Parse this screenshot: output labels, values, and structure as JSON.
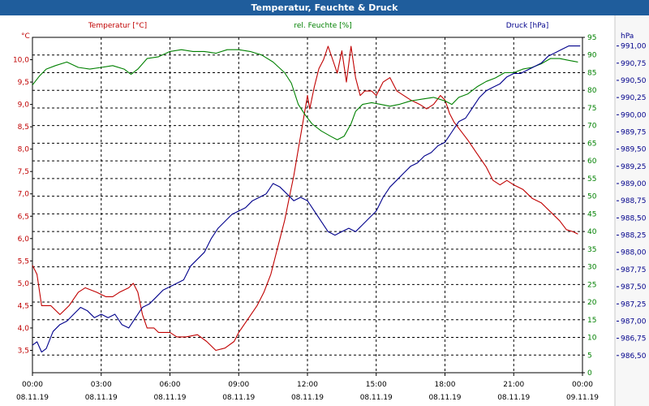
{
  "window": {
    "title": "Temperatur, Feuchte & Druck"
  },
  "chart_data": {
    "type": "line",
    "title": "Temperatur, Feuchte & Druck",
    "grid": true,
    "x_ticks": [
      {
        "time": "00:00",
        "date": "08.11.19"
      },
      {
        "time": "03:00",
        "date": "08.11.19"
      },
      {
        "time": "06:00",
        "date": "08.11.19"
      },
      {
        "time": "09:00",
        "date": "08.11.19"
      },
      {
        "time": "12:00",
        "date": "08.11.19"
      },
      {
        "time": "15:00",
        "date": "08.11.19"
      },
      {
        "time": "18:00",
        "date": "08.11.19"
      },
      {
        "time": "21:00",
        "date": "08.11.19"
      },
      {
        "time": "00:00",
        "date": "09.11.19"
      }
    ],
    "x_unit_hours": [
      0,
      24
    ],
    "axes": {
      "temperature": {
        "label": "Temperatur [°C]",
        "unit": "°C",
        "color": "#c00000",
        "min": 3.0,
        "max": 10.5,
        "ticks": [
          "3,5",
          "4,0",
          "4,5",
          "5,0",
          "5,5",
          "6,0",
          "6,5",
          "7,0",
          "7,5",
          "8,0",
          "8,5",
          "9,0",
          "9,5",
          "10,0"
        ]
      },
      "humidity": {
        "label": "rel. Feuchte [%]",
        "unit": "%",
        "color": "#008000",
        "min": 0,
        "max": 95,
        "ticks": [
          "0",
          "5",
          "10",
          "15",
          "20",
          "25",
          "30",
          "35",
          "40",
          "45",
          "50",
          "55",
          "60",
          "65",
          "70",
          "75",
          "80",
          "85",
          "90",
          "95"
        ]
      },
      "pressure": {
        "label": "Druck [hPa]",
        "unit": "hPa",
        "color": "#00008b",
        "min": 986.25,
        "max": 991.125,
        "ticks": [
          "986,50",
          "986,75",
          "987,00",
          "987,25",
          "987,50",
          "987,75",
          "988,00",
          "988,25",
          "988,50",
          "988,75",
          "989,00",
          "989,25",
          "989,50",
          "989,75",
          "990,00",
          "990,25",
          "990,50",
          "990,75",
          "991,00"
        ]
      }
    },
    "series": [
      {
        "name": "Temperatur [°C]",
        "axis": "temperature",
        "color": "#c00000",
        "points": [
          [
            0,
            5.4
          ],
          [
            0.2,
            5.2
          ],
          [
            0.4,
            4.5
          ],
          [
            0.8,
            4.5
          ],
          [
            1.2,
            4.3
          ],
          [
            1.6,
            4.5
          ],
          [
            2.0,
            4.8
          ],
          [
            2.3,
            4.9
          ],
          [
            2.8,
            4.8
          ],
          [
            3.2,
            4.7
          ],
          [
            3.5,
            4.7
          ],
          [
            3.8,
            4.8
          ],
          [
            4.2,
            4.9
          ],
          [
            4.4,
            5.0
          ],
          [
            4.6,
            4.8
          ],
          [
            4.8,
            4.3
          ],
          [
            5.0,
            4.0
          ],
          [
            5.3,
            4.0
          ],
          [
            5.5,
            3.9
          ],
          [
            6.0,
            3.9
          ],
          [
            6.3,
            3.8
          ],
          [
            6.7,
            3.8
          ],
          [
            7.2,
            3.85
          ],
          [
            7.6,
            3.7
          ],
          [
            8.0,
            3.5
          ],
          [
            8.4,
            3.55
          ],
          [
            8.8,
            3.7
          ],
          [
            9.0,
            3.9
          ],
          [
            9.4,
            4.2
          ],
          [
            9.8,
            4.5
          ],
          [
            10.1,
            4.8
          ],
          [
            10.4,
            5.2
          ],
          [
            10.7,
            5.8
          ],
          [
            11.0,
            6.4
          ],
          [
            11.2,
            6.9
          ],
          [
            11.4,
            7.4
          ],
          [
            11.6,
            8.0
          ],
          [
            11.8,
            8.6
          ],
          [
            12.0,
            9.2
          ],
          [
            12.1,
            8.9
          ],
          [
            12.3,
            9.4
          ],
          [
            12.5,
            9.8
          ],
          [
            12.7,
            10.0
          ],
          [
            12.9,
            10.3
          ],
          [
            13.1,
            10.0
          ],
          [
            13.3,
            9.7
          ],
          [
            13.5,
            10.2
          ],
          [
            13.7,
            9.5
          ],
          [
            13.9,
            10.3
          ],
          [
            14.1,
            9.6
          ],
          [
            14.3,
            9.2
          ],
          [
            14.5,
            9.3
          ],
          [
            14.8,
            9.3
          ],
          [
            15.0,
            9.2
          ],
          [
            15.3,
            9.5
          ],
          [
            15.6,
            9.6
          ],
          [
            15.9,
            9.3
          ],
          [
            16.2,
            9.2
          ],
          [
            16.5,
            9.1
          ],
          [
            16.9,
            9.0
          ],
          [
            17.2,
            8.9
          ],
          [
            17.5,
            9.0
          ],
          [
            17.8,
            9.2
          ],
          [
            18.0,
            9.1
          ],
          [
            18.2,
            8.8
          ],
          [
            18.4,
            8.6
          ],
          [
            18.7,
            8.4
          ],
          [
            19.0,
            8.2
          ],
          [
            19.4,
            7.9
          ],
          [
            19.8,
            7.6
          ],
          [
            20.1,
            7.3
          ],
          [
            20.4,
            7.2
          ],
          [
            20.7,
            7.3
          ],
          [
            21.0,
            7.2
          ],
          [
            21.4,
            7.1
          ],
          [
            21.8,
            6.9
          ],
          [
            22.2,
            6.8
          ],
          [
            22.6,
            6.6
          ],
          [
            23.0,
            6.4
          ],
          [
            23.3,
            6.2
          ],
          [
            23.6,
            6.15
          ],
          [
            23.8,
            6.1
          ]
        ]
      },
      {
        "name": "rel. Feuchte [%]",
        "axis": "humidity",
        "color": "#008000",
        "points": [
          [
            0,
            81.5
          ],
          [
            0.3,
            84
          ],
          [
            0.6,
            86
          ],
          [
            1.0,
            87
          ],
          [
            1.5,
            88
          ],
          [
            2.0,
            86.5
          ],
          [
            2.5,
            86
          ],
          [
            3.0,
            86.5
          ],
          [
            3.5,
            87
          ],
          [
            4.0,
            86
          ],
          [
            4.3,
            84.5
          ],
          [
            4.6,
            86
          ],
          [
            5.0,
            89
          ],
          [
            5.5,
            89.5
          ],
          [
            6.0,
            91
          ],
          [
            6.5,
            91.5
          ],
          [
            7.0,
            91
          ],
          [
            7.5,
            91
          ],
          [
            8.0,
            90.5
          ],
          [
            8.5,
            91.5
          ],
          [
            9.0,
            91.5
          ],
          [
            9.5,
            91
          ],
          [
            10.0,
            90
          ],
          [
            10.5,
            88
          ],
          [
            11.0,
            85
          ],
          [
            11.3,
            82
          ],
          [
            11.6,
            76
          ],
          [
            11.9,
            73
          ],
          [
            12.2,
            70.5
          ],
          [
            12.6,
            68.5
          ],
          [
            13.0,
            67
          ],
          [
            13.3,
            66
          ],
          [
            13.6,
            67
          ],
          [
            13.9,
            70.5
          ],
          [
            14.1,
            74
          ],
          [
            14.4,
            76
          ],
          [
            14.8,
            76.5
          ],
          [
            15.2,
            76
          ],
          [
            15.6,
            75.5
          ],
          [
            16.0,
            76
          ],
          [
            16.5,
            77
          ],
          [
            17.0,
            77.5
          ],
          [
            17.5,
            78
          ],
          [
            18.0,
            77
          ],
          [
            18.3,
            76
          ],
          [
            18.6,
            78
          ],
          [
            19.0,
            79
          ],
          [
            19.4,
            81
          ],
          [
            19.8,
            82.5
          ],
          [
            20.2,
            83.5
          ],
          [
            20.6,
            85
          ],
          [
            21.0,
            85
          ],
          [
            21.4,
            86
          ],
          [
            21.8,
            86.5
          ],
          [
            22.2,
            87.5
          ],
          [
            22.6,
            89
          ],
          [
            23.0,
            89
          ],
          [
            23.4,
            88.5
          ],
          [
            23.8,
            88
          ]
        ]
      },
      {
        "name": "Druck [hPa]",
        "axis": "pressure",
        "color": "#00008b",
        "points": [
          [
            0,
            986.65
          ],
          [
            0.2,
            986.7
          ],
          [
            0.4,
            986.55
          ],
          [
            0.6,
            986.6
          ],
          [
            0.9,
            986.85
          ],
          [
            1.2,
            986.95
          ],
          [
            1.5,
            987.0
          ],
          [
            1.8,
            987.1
          ],
          [
            2.1,
            987.2
          ],
          [
            2.4,
            987.15
          ],
          [
            2.7,
            987.05
          ],
          [
            3.0,
            987.1
          ],
          [
            3.3,
            987.05
          ],
          [
            3.6,
            987.1
          ],
          [
            3.9,
            986.95
          ],
          [
            4.2,
            986.9
          ],
          [
            4.5,
            987.05
          ],
          [
            4.8,
            987.2
          ],
          [
            5.1,
            987.25
          ],
          [
            5.4,
            987.35
          ],
          [
            5.7,
            987.45
          ],
          [
            6.0,
            987.5
          ],
          [
            6.3,
            987.55
          ],
          [
            6.6,
            987.6
          ],
          [
            6.9,
            987.8
          ],
          [
            7.2,
            987.9
          ],
          [
            7.5,
            988.0
          ],
          [
            7.8,
            988.2
          ],
          [
            8.1,
            988.35
          ],
          [
            8.4,
            988.45
          ],
          [
            8.7,
            988.55
          ],
          [
            9.0,
            988.6
          ],
          [
            9.3,
            988.65
          ],
          [
            9.6,
            988.75
          ],
          [
            9.9,
            988.8
          ],
          [
            10.2,
            988.85
          ],
          [
            10.5,
            989.0
          ],
          [
            10.8,
            988.95
          ],
          [
            11.1,
            988.85
          ],
          [
            11.4,
            988.75
          ],
          [
            11.7,
            988.8
          ],
          [
            12.0,
            988.75
          ],
          [
            12.3,
            988.6
          ],
          [
            12.6,
            988.45
          ],
          [
            12.9,
            988.3
          ],
          [
            13.2,
            988.25
          ],
          [
            13.5,
            988.3
          ],
          [
            13.8,
            988.35
          ],
          [
            14.1,
            988.3
          ],
          [
            14.4,
            988.4
          ],
          [
            14.7,
            988.5
          ],
          [
            15.0,
            988.6
          ],
          [
            15.3,
            988.8
          ],
          [
            15.6,
            988.95
          ],
          [
            15.9,
            989.05
          ],
          [
            16.2,
            989.15
          ],
          [
            16.5,
            989.25
          ],
          [
            16.8,
            989.3
          ],
          [
            17.1,
            989.4
          ],
          [
            17.4,
            989.45
          ],
          [
            17.7,
            989.55
          ],
          [
            18.0,
            989.6
          ],
          [
            18.3,
            989.75
          ],
          [
            18.6,
            989.9
          ],
          [
            18.9,
            989.95
          ],
          [
            19.2,
            990.1
          ],
          [
            19.5,
            990.25
          ],
          [
            19.8,
            990.35
          ],
          [
            20.1,
            990.4
          ],
          [
            20.4,
            990.45
          ],
          [
            20.7,
            990.55
          ],
          [
            21.0,
            990.6
          ],
          [
            21.3,
            990.6
          ],
          [
            21.6,
            990.65
          ],
          [
            21.9,
            990.7
          ],
          [
            22.2,
            990.75
          ],
          [
            22.5,
            990.85
          ],
          [
            22.8,
            990.9
          ],
          [
            23.1,
            990.95
          ],
          [
            23.4,
            991.0
          ],
          [
            23.7,
            991.0
          ],
          [
            23.9,
            991.0
          ]
        ]
      }
    ]
  }
}
